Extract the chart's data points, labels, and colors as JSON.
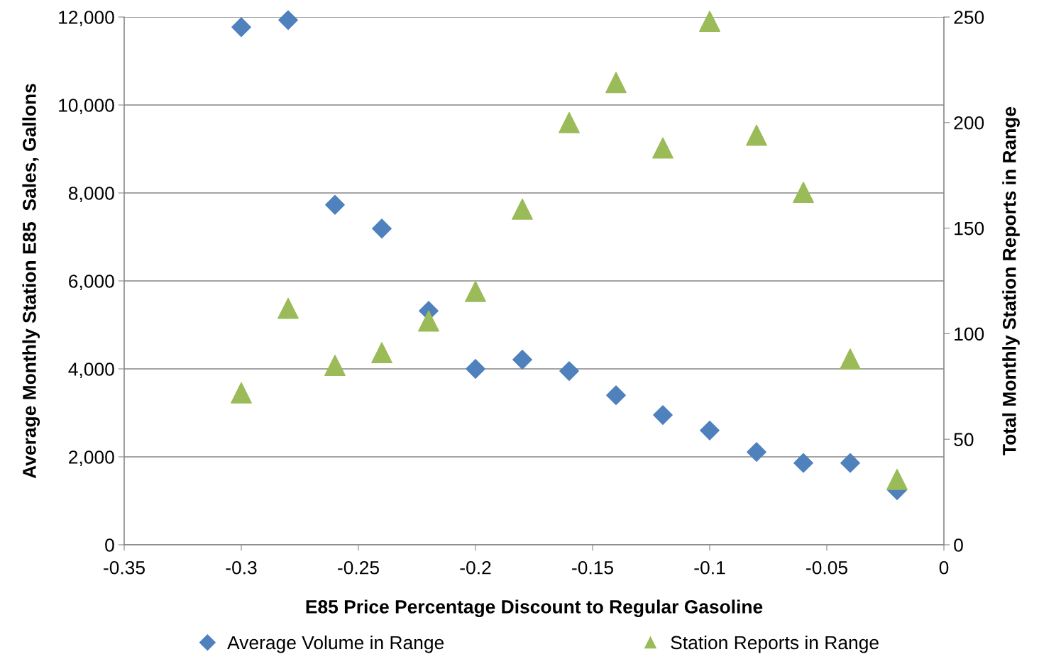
{
  "chart_data": {
    "type": "scatter",
    "xlabel": "E85 Price Percentage Discount to Regular Gasoline",
    "ylabel": "Average Monthly Station E85  Sales, Gallons",
    "y2label": "Total Monthly Station Reports in Range",
    "x": [
      -0.3,
      -0.28,
      -0.26,
      -0.24,
      -0.22,
      -0.2,
      -0.18,
      -0.16,
      -0.14,
      -0.12,
      -0.1,
      -0.08,
      -0.06,
      -0.04,
      -0.02
    ],
    "series": [
      {
        "name": "Average Volume in Range",
        "color": "#4f81bd",
        "marker": "diamond",
        "values": [
          11770,
          11930,
          7730,
          7190,
          5320,
          4000,
          4210,
          3950,
          3400,
          2950,
          2600,
          2110,
          1860,
          1860,
          1240
        ]
      },
      {
        "name": "Station Reports in Range",
        "color": "#9bbb59",
        "marker": "triangle",
        "axis": "y2",
        "values": [
          72,
          112,
          85,
          91,
          106,
          120,
          159,
          200,
          219,
          188,
          248,
          194,
          167,
          88,
          31
        ]
      }
    ],
    "xlim": [
      -0.35,
      0
    ],
    "xticks": [
      {
        "value": -0.35,
        "label": "-0.35"
      },
      {
        "value": -0.3,
        "label": "-0.3"
      },
      {
        "value": -0.25,
        "label": "-0.25"
      },
      {
        "value": -0.2,
        "label": "-0.2"
      },
      {
        "value": -0.15,
        "label": "-0.15"
      },
      {
        "value": -0.1,
        "label": "-0.1"
      },
      {
        "value": -0.05,
        "label": "-0.05"
      },
      0
    ],
    "ylim": [
      0,
      12000
    ],
    "yticks": [
      0,
      {
        "value": 2000,
        "label": "2,000"
      },
      {
        "value": 4000,
        "label": "4,000"
      },
      {
        "value": 6000,
        "label": "6,000"
      },
      {
        "value": 8000,
        "label": "8,000"
      },
      {
        "value": 10000,
        "label": "10,000"
      },
      {
        "value": 12000,
        "label": "12,000"
      }
    ],
    "y2lim": [
      0,
      250
    ],
    "y2ticks": [
      0,
      50,
      100,
      150,
      200,
      250
    ],
    "grid": "y",
    "legend": "bottom"
  }
}
